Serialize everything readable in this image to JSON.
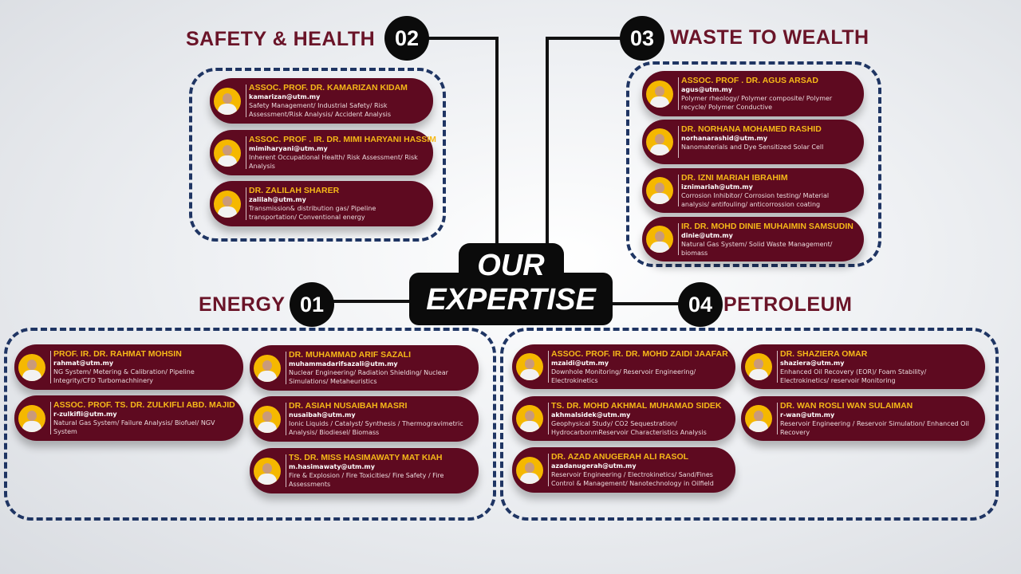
{
  "center": {
    "line1": "OUR",
    "line2": "EXPERTISE"
  },
  "colors": {
    "card": "#5e0a20",
    "name": "#f6b818",
    "title": "#6a1428",
    "dashed_border": "#1f3563",
    "number_circle": "#0b0b0b"
  },
  "sections": [
    {
      "number": "01",
      "title": "ENERGY",
      "members": [
        {
          "name": "PROF. IR. DR. RAHMAT MOHSIN",
          "email": "rahmat@utm.my",
          "expertise": "NG System/ Metering & Calibration/ Pipeline Integrity/CFD Turbomachhinery"
        },
        {
          "name": "ASSOC. PROF. TS. DR. ZULKIFLI ABD. MAJID",
          "email": "r-zulkifli@utm.my",
          "expertise": "Natural Gas System/ Failure Analysis/ Biofuel/ NGV System"
        },
        {
          "name": "DR. MUHAMMAD ARIF SAZALI",
          "email": "muhammadarifsazali@utm.my",
          "expertise": "Nuclear Engineering/ Radiation Shielding/ Nuclear Simulations/ Metaheuristics"
        },
        {
          "name": "DR. ASIAH NUSAIBAH MASRI",
          "email": "nusaibah@utm.my",
          "expertise": "Ionic Liquids / Catalyst/ Synthesis / Thermogravimetric Analysis/ Biodiesel/ Biomass"
        },
        {
          "name": "TS. DR. MISS HASIMAWATY MAT KIAH",
          "email": "m.hasimawaty@utm.my",
          "expertise": "Fire & Explosion / Fire Toxicities/ Fire Safety / Fire Assessments"
        }
      ]
    },
    {
      "number": "02",
      "title": "SAFETY & HEALTH",
      "members": [
        {
          "name": "ASSOC. PROF. DR. KAMARIZAN KIDAM",
          "email": "kamarizan@utm.my",
          "expertise": "Safety Management/ Industrial Safety/ Risk Assessment/Risk Analysis/ Accident Analysis"
        },
        {
          "name": "ASSOC. PROF . IR. DR. MIMI HARYANI HASSIM",
          "email": "mimiharyani@utm.my",
          "expertise": "Inherent Occupational Health/ Risk Assessment/ Risk Analysis"
        },
        {
          "name": "DR. ZALILAH SHARER",
          "email": "zalilah@utm.my",
          "expertise": "Transmission& distribution gas/ Pipeline transportation/ Conventional energy"
        }
      ]
    },
    {
      "number": "03",
      "title": "WASTE TO WEALTH",
      "members": [
        {
          "name": "ASSOC. PROF . DR. AGUS ARSAD",
          "email": "agus@utm.my",
          "expertise": "Polymer rheology/ Polymer composite/ Polymer recycle/ Polymer Conductive"
        },
        {
          "name": "DR. NORHANA MOHAMED RASHID",
          "email": "norhanarashid@utm.my",
          "expertise": "Nanomaterials and Dye Sensitized Solar Cell"
        },
        {
          "name": "DR. IZNI MARIAH IBRAHIM",
          "email": "iznimariah@utm.my",
          "expertise": "Corrosion Inhibitor/ Corrosion testing/ Material analysis/ antifouling/ anticorrossion coating"
        },
        {
          "name": "IR. DR. MOHD DINIE MUHAIMIN SAMSUDIN",
          "email": "dinie@utm.my",
          "expertise": "Natural Gas System/ Solid Waste Management/ biomass"
        }
      ]
    },
    {
      "number": "04",
      "title": "PETROLEUM",
      "members": [
        {
          "name": "ASSOC. PROF. IR. DR. MOHD ZAIDI JAAFAR",
          "email": "mzaidi@utm.my",
          "expertise": "Downhole Monitoring/ Reservoir Engineering/ Electrokinetics"
        },
        {
          "name": "TS. DR. MOHD AKHMAL MUHAMAD SIDEK",
          "email": "akhmalsidek@utm.my",
          "expertise": "Geophysical Study/ CO2 Sequestration/ HydrocarbonmReservoir Characteristics Analysis"
        },
        {
          "name": "DR. AZAD ANUGERAH ALI RASOL",
          "email": "azadanugerah@utm.my",
          "expertise": "Reservoir Engineering / Electrokinetics/ Sand/Fines Control & Management/ Nanotechnology in Oilfield"
        },
        {
          "name": "DR. SHAZIERA OMAR",
          "email": "shaziera@utm.my",
          "expertise": "Enhanced Oil Recovery (EOR)/ Foam Stability/ Electrokinetics/ reservoir Monitoring"
        },
        {
          "name": "DR. WAN ROSLI WAN SULAIMAN",
          "email": "r-wan@utm.my",
          "expertise": "Reservoir Engineering / Reservoir Simulation/ Enhanced Oil Recovery"
        }
      ]
    }
  ]
}
